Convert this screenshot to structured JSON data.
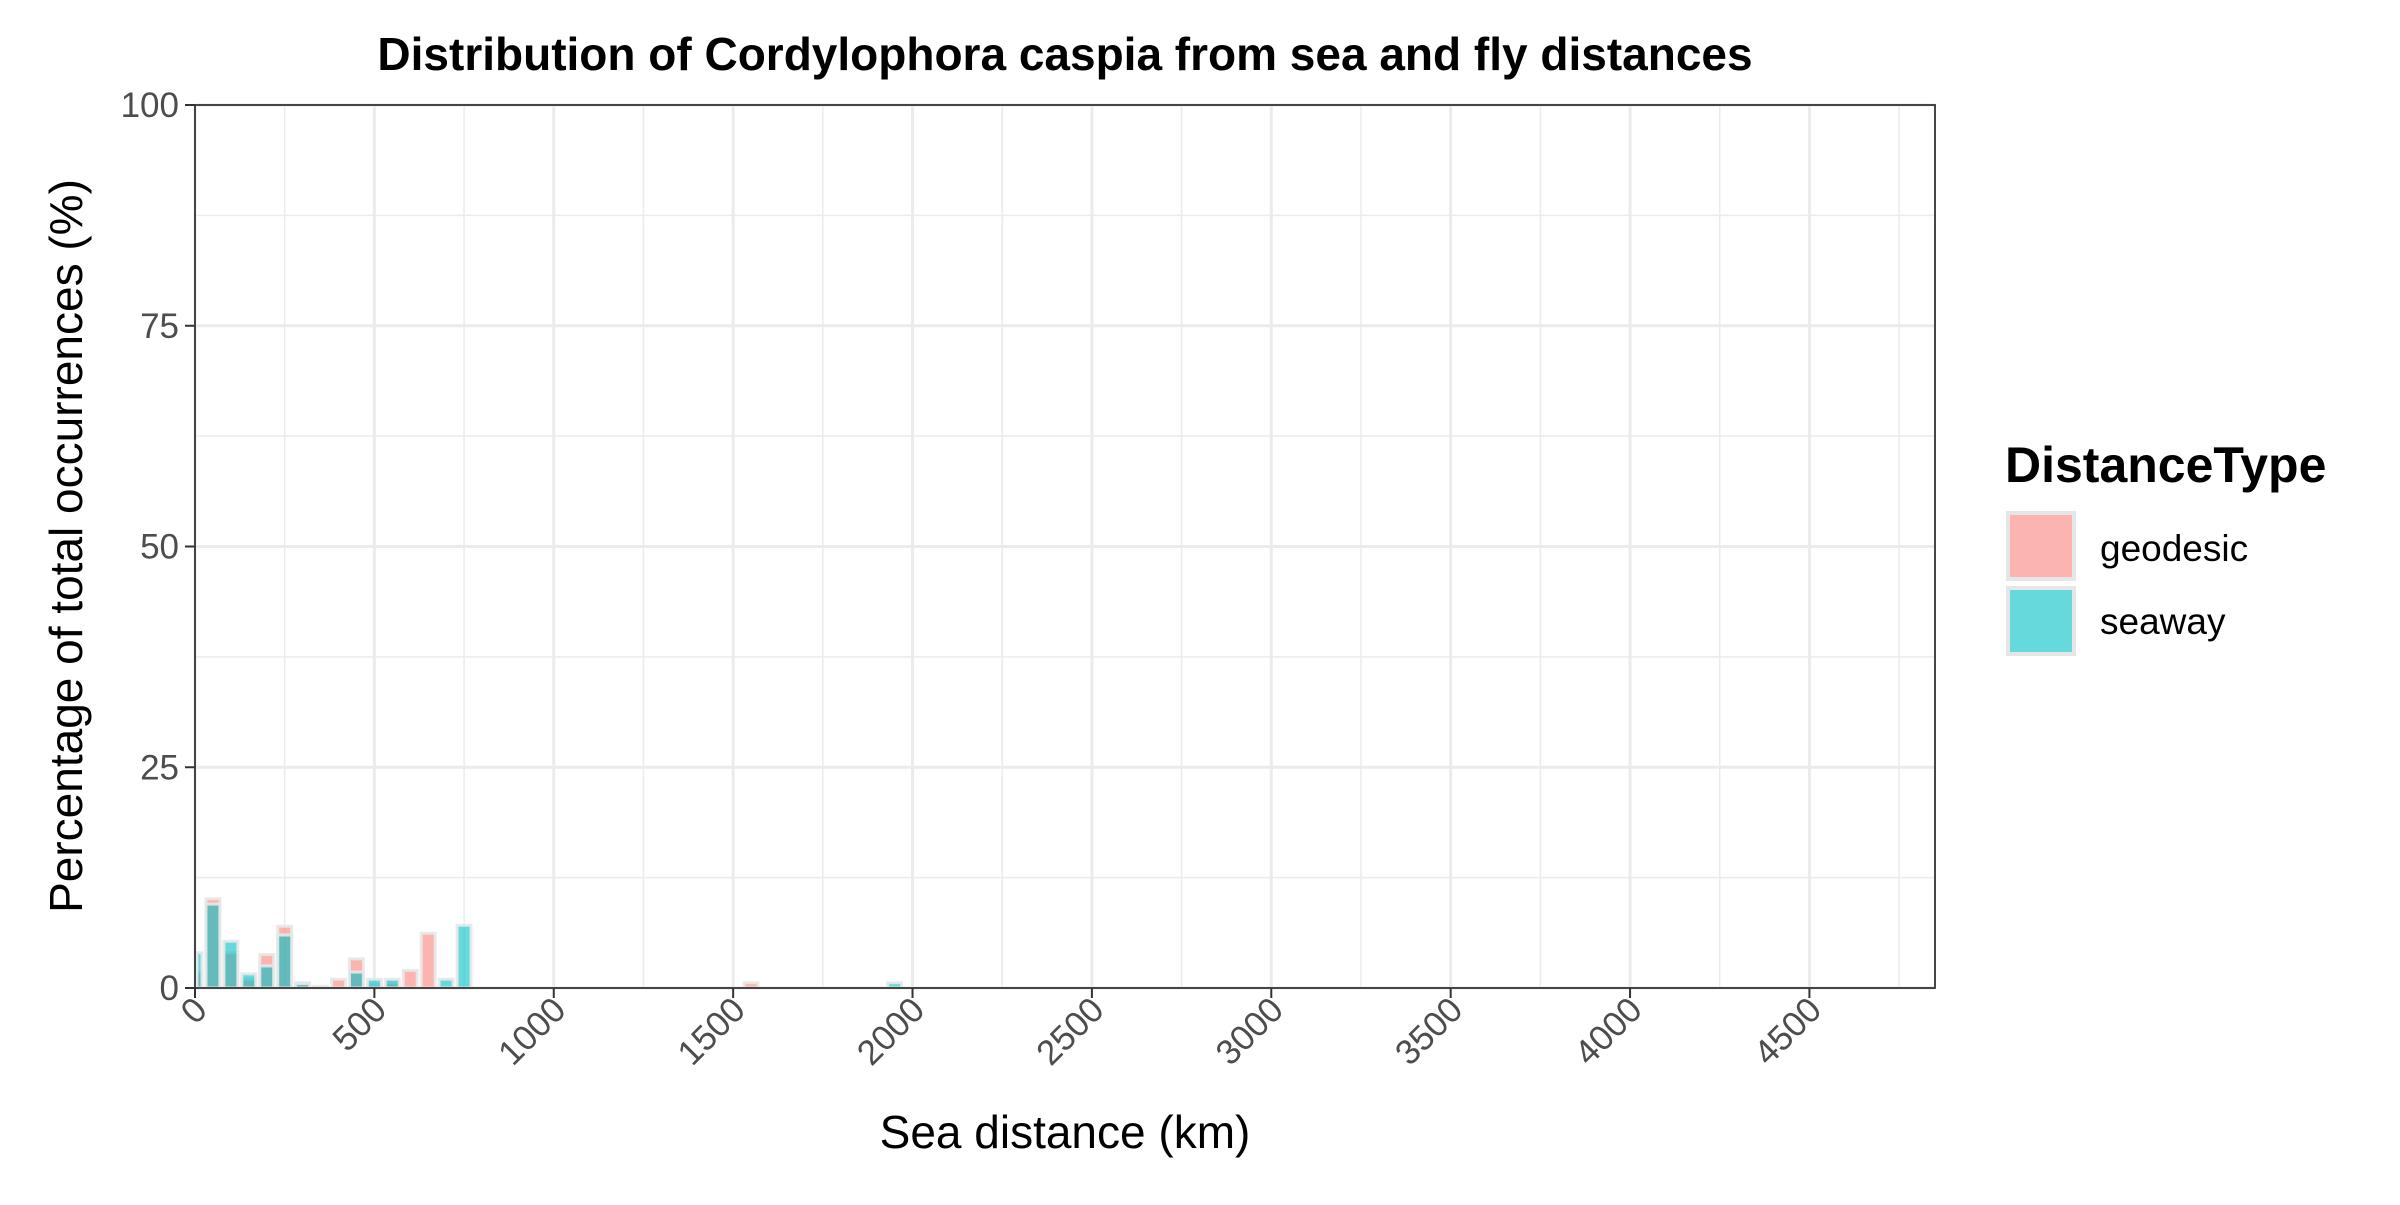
{
  "chart_data": {
    "type": "bar",
    "title": "Distribution of Cordylophora caspia from sea and fly distances",
    "xlabel": "Sea distance (km)",
    "ylabel": "Percentage of total occurrences (%)",
    "xlim": [
      0,
      4850
    ],
    "ylim": [
      0,
      100
    ],
    "x_ticks": [
      0,
      500,
      1000,
      1500,
      2000,
      2500,
      3000,
      3500,
      4000,
      4500
    ],
    "y_ticks": [
      0,
      25,
      50,
      75,
      100
    ],
    "grid": true,
    "bar_width": 50,
    "legend": {
      "title": "DistanceType",
      "position": "right",
      "entries": [
        {
          "label": "geodesic",
          "color": "#F8766D"
        },
        {
          "label": "seaway",
          "color": "#00BFC4"
        }
      ]
    },
    "x": [
      0,
      50,
      100,
      150,
      200,
      250,
      300,
      350,
      400,
      450,
      500,
      550,
      600,
      650,
      700,
      750,
      1550,
      1950
    ],
    "series": [
      {
        "name": "geodesic",
        "color": "#F8766D",
        "values": [
          1.8,
          10.1,
          4.0,
          1.0,
          3.8,
          7.0,
          0.6,
          0.2,
          1.0,
          3.3,
          0.4,
          0.6,
          2.0,
          6.2,
          0,
          0,
          0.6,
          0
        ]
      },
      {
        "name": "seaway",
        "color": "#00BFC4",
        "values": [
          4.0,
          9.5,
          5.3,
          1.6,
          2.5,
          6.0,
          0.5,
          0,
          0,
          1.8,
          1.0,
          1.0,
          0,
          0,
          1.0,
          7.1,
          0,
          0.6
        ]
      }
    ]
  }
}
